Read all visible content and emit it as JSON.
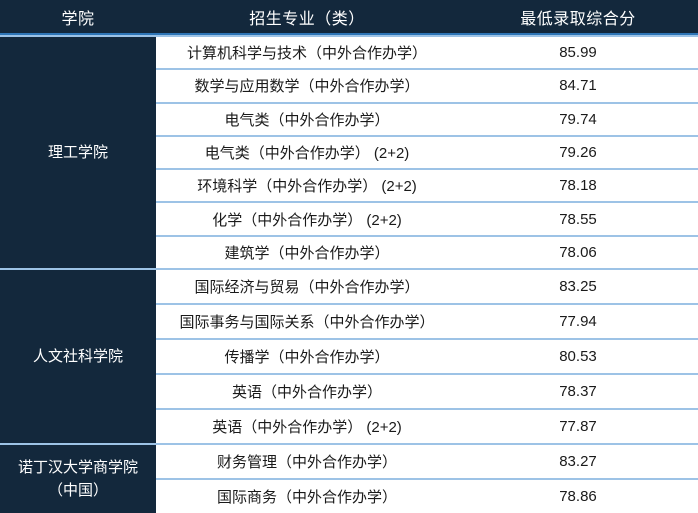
{
  "colors": {
    "header_bg": "#13283c",
    "header_text": "#ffffff",
    "cell_text": "#1a1a1a",
    "divider_light": "#9dc3e6",
    "divider_dark": "#2e75b6",
    "row_bg": "#ffffff"
  },
  "table": {
    "headers": [
      "学院",
      "招生专业（类）",
      "最低录取综合分"
    ],
    "groups": [
      {
        "college": "理工学院",
        "rows": [
          {
            "major": "计算机科学与技术（中外合作办学）",
            "score": "85.99"
          },
          {
            "major": "数学与应用数学（中外合作办学）",
            "score": "84.71"
          },
          {
            "major": "电气类（中外合作办学）",
            "score": "79.74"
          },
          {
            "major": "电气类（中外合作办学） (2+2)",
            "score": "79.26"
          },
          {
            "major": "环境科学（中外合作办学） (2+2)",
            "score": "78.18"
          },
          {
            "major": "化学（中外合作办学） (2+2)",
            "score": "78.55"
          },
          {
            "major": "建筑学（中外合作办学）",
            "score": "78.06"
          }
        ]
      },
      {
        "college": "人文社科学院",
        "rows": [
          {
            "major": "国际经济与贸易（中外合作办学）",
            "score": "83.25"
          },
          {
            "major": "国际事务与国际关系（中外合作办学）",
            "score": "77.94"
          },
          {
            "major": "传播学（中外合作办学）",
            "score": "80.53"
          },
          {
            "major": "英语（中外合作办学）",
            "score": "78.37"
          },
          {
            "major": "英语（中外合作办学） (2+2)",
            "score": "77.87"
          }
        ]
      },
      {
        "college": "诺丁汉大学商学院\n（中国）",
        "rows": [
          {
            "major": "财务管理（中外合作办学）",
            "score": "83.27"
          },
          {
            "major": "国际商务（中外合作办学）",
            "score": "78.86"
          }
        ]
      }
    ]
  }
}
